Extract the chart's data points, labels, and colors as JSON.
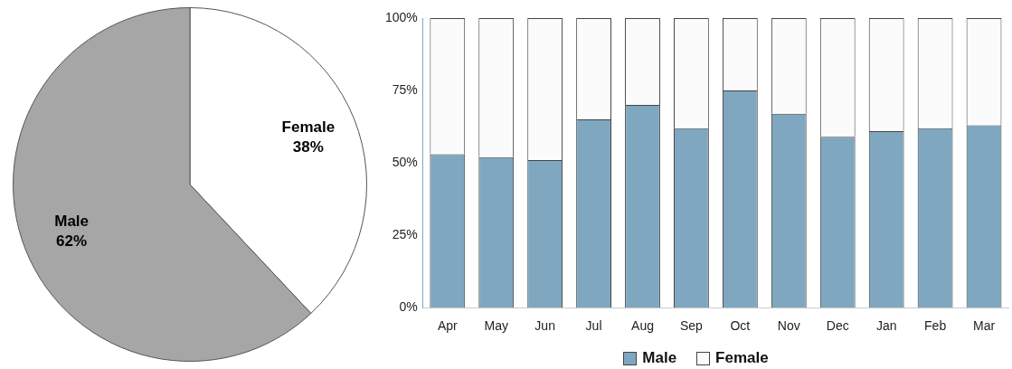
{
  "chart_data": [
    {
      "type": "pie",
      "categories": [
        "Female",
        "Male"
      ],
      "values": [
        38,
        62
      ],
      "colors": [
        "#ffffff",
        "#a6a6a6"
      ],
      "data_labels": true,
      "value_labels": [
        "38%",
        "62%"
      ],
      "legend": false
    },
    {
      "type": "bar",
      "stacked": true,
      "categories": [
        "Apr",
        "May",
        "Jun",
        "Jul",
        "Aug",
        "Sep",
        "Oct",
        "Nov",
        "Dec",
        "Jan",
        "Feb",
        "Mar"
      ],
      "series": [
        {
          "name": "Male",
          "color": "#7fa8c0",
          "values": [
            53,
            52,
            51,
            65,
            70,
            62,
            75,
            67,
            59,
            61,
            62,
            63
          ]
        },
        {
          "name": "Female",
          "color": "#fbfbfb",
          "values": [
            47,
            48,
            49,
            35,
            30,
            38,
            25,
            33,
            41,
            39,
            38,
            37
          ]
        }
      ],
      "ylim": [
        0,
        100
      ],
      "yticks": [
        {
          "value": 0,
          "label": "0%"
        },
        {
          "value": 25,
          "label": "25%"
        },
        {
          "value": 50,
          "label": "50%"
        },
        {
          "value": 75,
          "label": "75%"
        },
        {
          "value": 100,
          "label": "100%"
        }
      ],
      "grid": false,
      "legend": "bottom"
    }
  ]
}
